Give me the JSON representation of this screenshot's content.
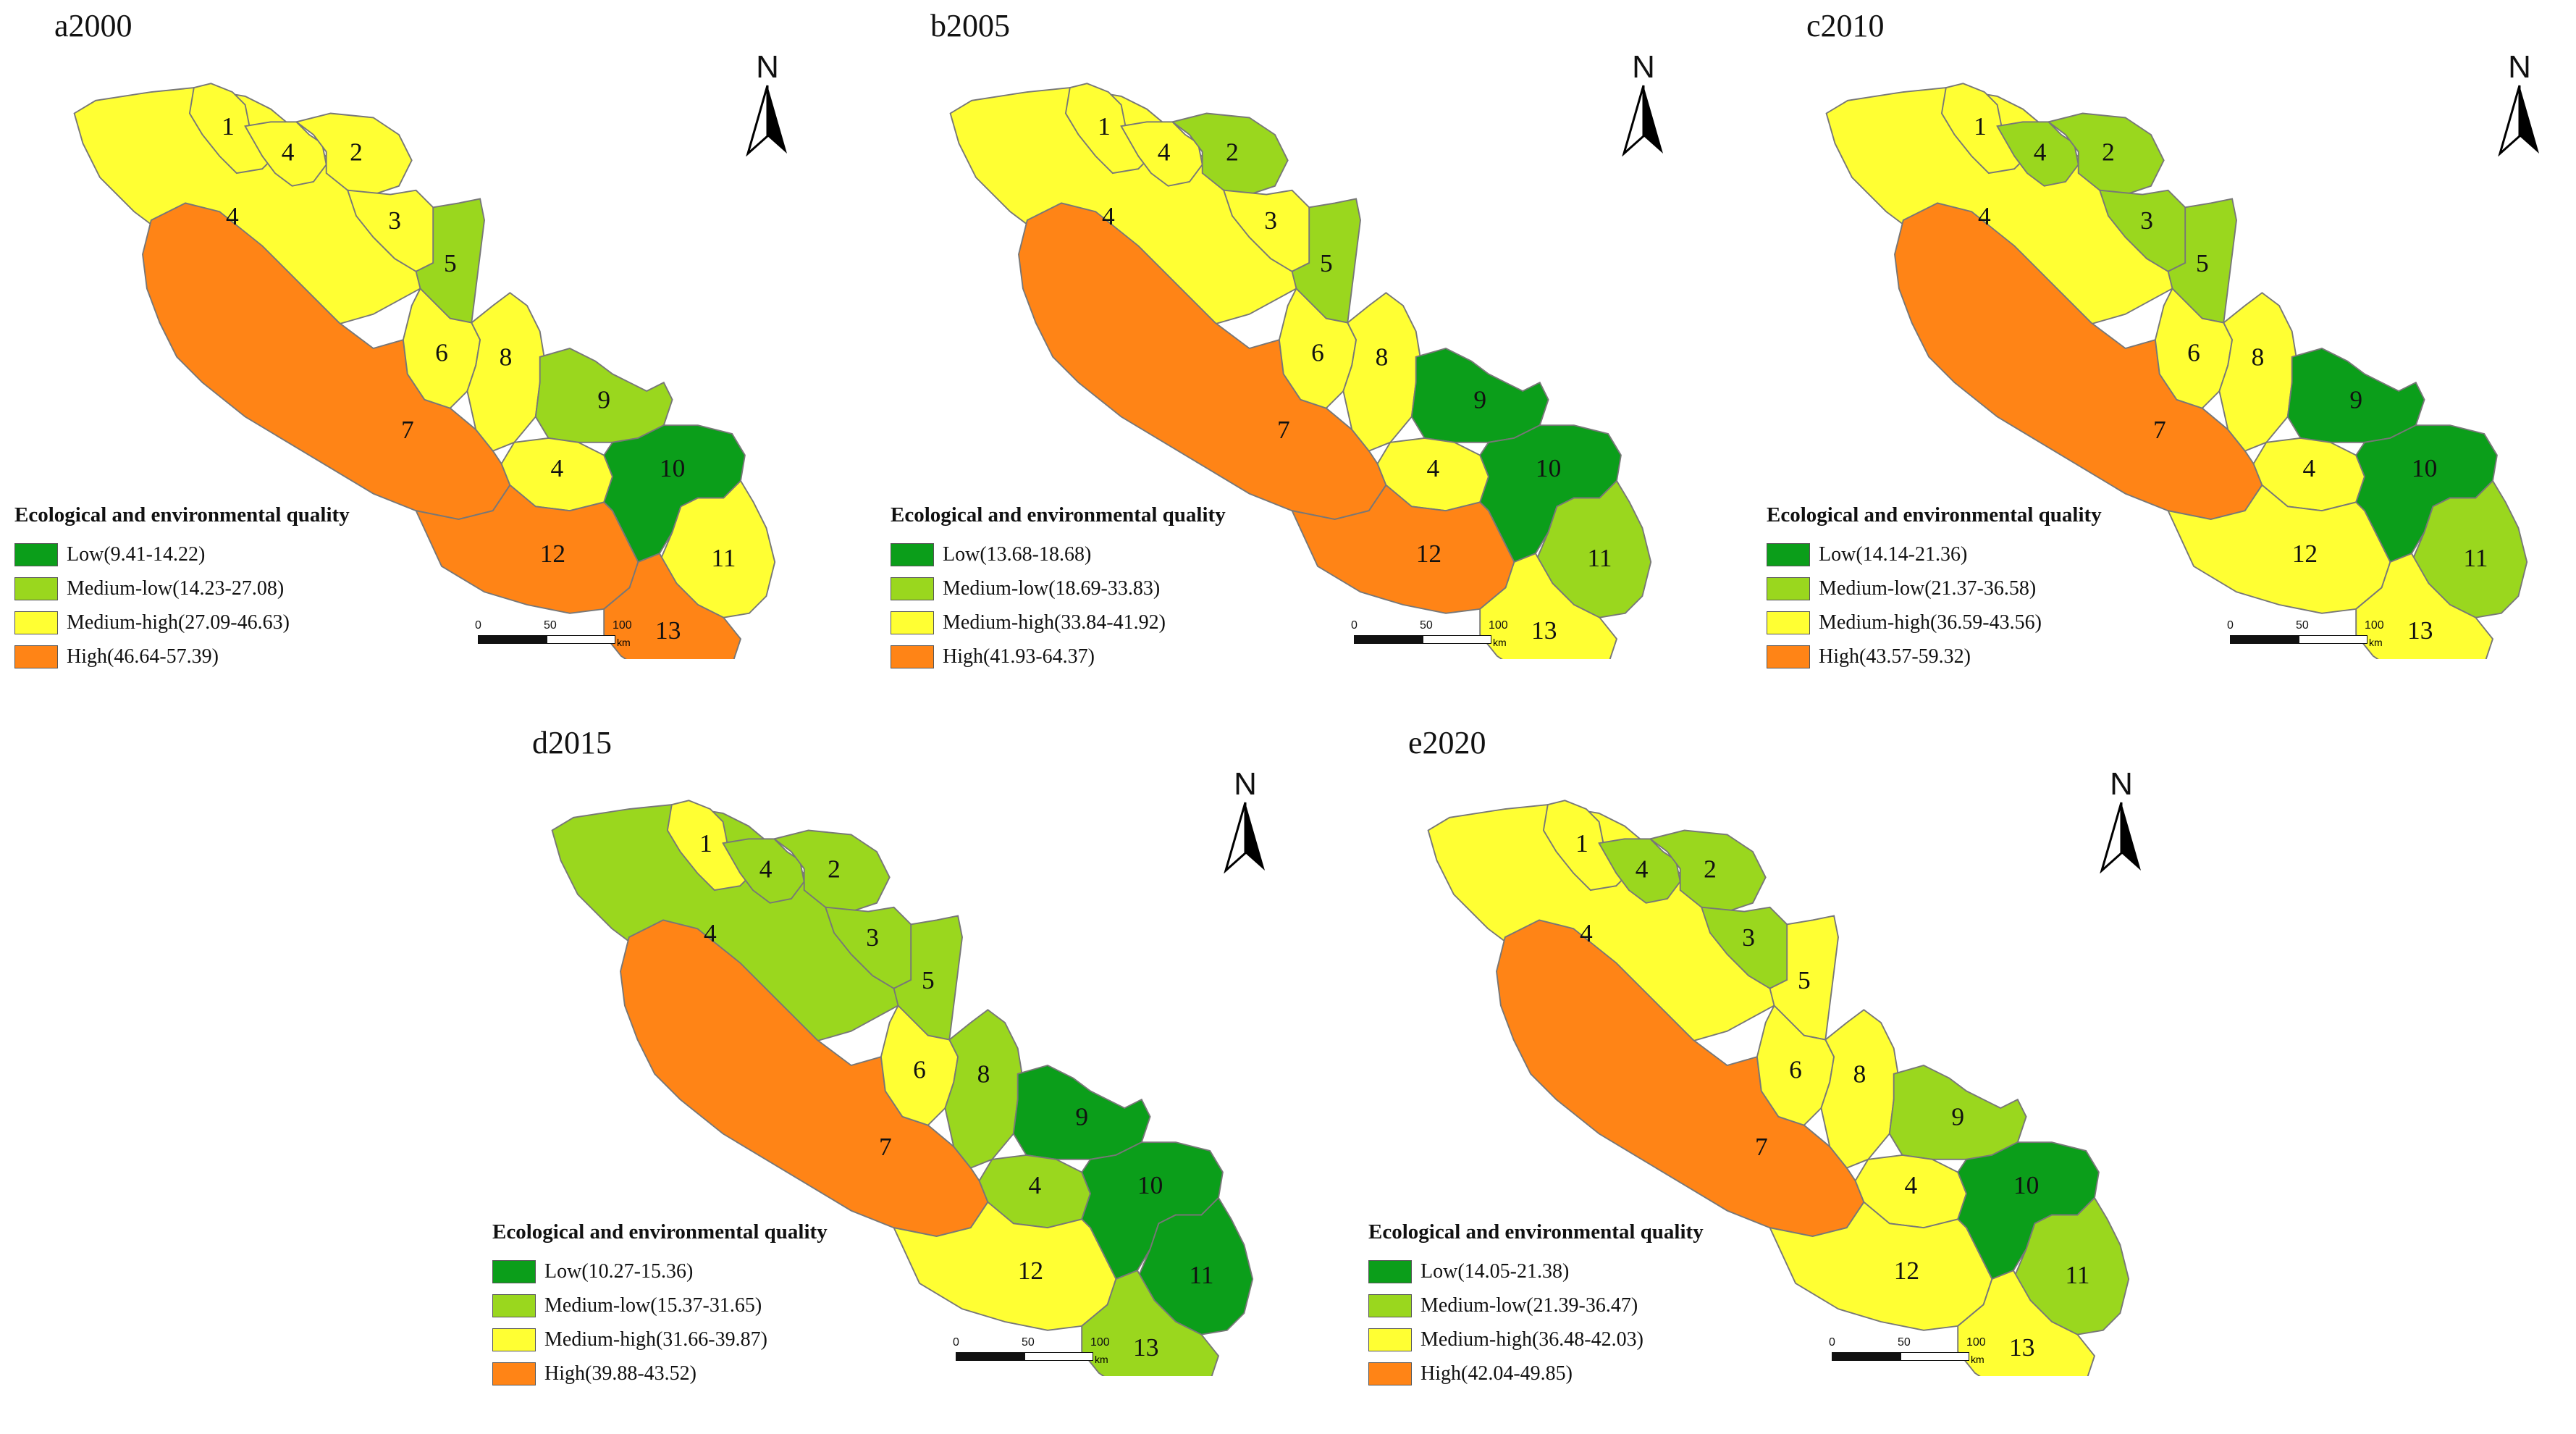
{
  "colors": {
    "low": "#0b9e1a",
    "medium_low": "#9ad71e",
    "medium_high": "#ffff33",
    "high": "#ff8416",
    "border": "#777777"
  },
  "legend_title": "Ecological and environmental quality",
  "scale_bar": {
    "ticks": [
      "0",
      "50",
      "100"
    ],
    "unit": "km"
  },
  "north_label": "N",
  "panels": [
    {
      "title": "a2000",
      "legend": [
        "Low(9.41-14.22)",
        "Medium-low(14.23-27.08)",
        "Medium-high(27.09-46.63)",
        "High(46.64-57.39)"
      ],
      "regions": {
        "r1": "medium_high",
        "r2": "medium_high",
        "r3": "medium_high",
        "r4a": "medium_high",
        "r4b": "medium_high",
        "r4c": "medium_high",
        "r5": "medium_low",
        "r6": "medium_high",
        "r7": "high",
        "r8": "medium_high",
        "r9": "medium_low",
        "r10": "low",
        "r11": "medium_high",
        "r12": "high",
        "r13": "high"
      },
      "labels": {
        "r1": "1",
        "r2": "2",
        "r3": "3",
        "r4a": "4",
        "r4b": "4",
        "r4c": "4",
        "r5": "5",
        "r6": "6",
        "r7": "7",
        "r8": "8",
        "r9": "9",
        "r10": "10",
        "r11": "11",
        "r12": "12",
        "r13": "13"
      }
    },
    {
      "title": "b2005",
      "legend": [
        "Low(13.68-18.68)",
        "Medium-low(18.69-33.83)",
        "Medium-high(33.84-41.92)",
        "High(41.93-64.37)"
      ],
      "regions": {
        "r1": "medium_high",
        "r2": "medium_low",
        "r3": "medium_high",
        "r4a": "medium_high",
        "r4b": "medium_high",
        "r4c": "medium_high",
        "r5": "medium_low",
        "r6": "medium_high",
        "r7": "high",
        "r8": "medium_high",
        "r9": "low",
        "r10": "low",
        "r11": "medium_low",
        "r12": "high",
        "r13": "medium_high"
      },
      "labels": {
        "r1": "1",
        "r2": "2",
        "r3": "3",
        "r4a": "4",
        "r4b": "4",
        "r4c": "4",
        "r5": "5",
        "r6": "6",
        "r7": "7",
        "r8": "8",
        "r9": "9",
        "r10": "10",
        "r11": "11",
        "r12": "12",
        "r13": "13"
      }
    },
    {
      "title": "c2010",
      "legend": [
        "Low(14.14-21.36)",
        "Medium-low(21.37-36.58)",
        "Medium-high(36.59-43.56)",
        "High(43.57-59.32)"
      ],
      "regions": {
        "r1": "medium_high",
        "r2": "medium_low",
        "r3": "medium_low",
        "r4a": "medium_high",
        "r4b": "medium_low",
        "r4c": "medium_high",
        "r5": "medium_low",
        "r6": "medium_high",
        "r7": "high",
        "r8": "medium_high",
        "r9": "low",
        "r10": "low",
        "r11": "medium_low",
        "r12": "medium_high",
        "r13": "medium_high"
      },
      "labels": {
        "r1": "1",
        "r2": "2",
        "r3": "3",
        "r4a": "4",
        "r4b": "4",
        "r4c": "4",
        "r5": "5",
        "r6": "6",
        "r7": "7",
        "r8": "8",
        "r9": "9",
        "r10": "10",
        "r11": "11",
        "r12": "12",
        "r13": "13"
      }
    },
    {
      "title": "d2015",
      "legend": [
        "Low(10.27-15.36)",
        "Medium-low(15.37-31.65)",
        "Medium-high(31.66-39.87)",
        "High(39.88-43.52)"
      ],
      "regions": {
        "r1": "medium_high",
        "r2": "medium_low",
        "r3": "medium_low",
        "r4a": "medium_low",
        "r4b": "medium_low",
        "r4c": "medium_low",
        "r5": "medium_low",
        "r6": "medium_high",
        "r7": "high",
        "r8": "medium_low",
        "r9": "low",
        "r10": "low",
        "r11": "low",
        "r12": "medium_high",
        "r13": "medium_low"
      },
      "labels": {
        "r1": "1",
        "r2": "2",
        "r3": "3",
        "r4a": "4",
        "r4b": "4",
        "r4c": "4",
        "r5": "5",
        "r6": "6",
        "r7": "7",
        "r8": "8",
        "r9": "9",
        "r10": "10",
        "r11": "11",
        "r12": "12",
        "r13": "13"
      }
    },
    {
      "title": "e2020",
      "legend": [
        "Low(14.05-21.38)",
        "Medium-low(21.39-36.47)",
        "Medium-high(36.48-42.03)",
        "High(42.04-49.85)"
      ],
      "regions": {
        "r1": "medium_high",
        "r2": "medium_low",
        "r3": "medium_low",
        "r4a": "medium_high",
        "r4b": "medium_low",
        "r4c": "medium_high",
        "r5": "medium_high",
        "r6": "medium_high",
        "r7": "high",
        "r8": "medium_high",
        "r9": "medium_low",
        "r10": "low",
        "r11": "medium_low",
        "r12": "medium_high",
        "r13": "medium_high"
      },
      "labels": {
        "r1": "1",
        "r2": "2",
        "r3": "3",
        "r4a": "4",
        "r4b": "4",
        "r4c": "4",
        "r5": "5",
        "r6": "6",
        "r7": "7",
        "r8": "8",
        "r9": "9",
        "r10": "10",
        "r11": "11",
        "r12": "12",
        "r13": "13"
      }
    }
  ]
}
